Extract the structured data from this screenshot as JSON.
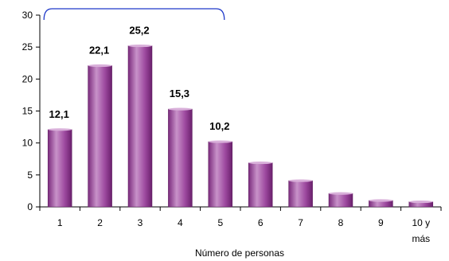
{
  "chart_data": {
    "type": "bar",
    "categories": [
      "1",
      "2",
      "3",
      "4",
      "5",
      "6",
      "7",
      "8",
      "9",
      "10 y más"
    ],
    "values": [
      12.1,
      22.1,
      25.2,
      15.3,
      10.2,
      6.9,
      4.1,
      2.1,
      1.0,
      0.8
    ],
    "data_labels": [
      "12,1",
      "22,1",
      "25,2",
      "15,3",
      "10,2",
      "",
      "",
      "",
      "",
      ""
    ],
    "title": "",
    "xlabel": "Número de personas",
    "ylabel": "",
    "ylim": [
      0,
      30
    ],
    "yticks": [
      0,
      5,
      10,
      15,
      20,
      25,
      30
    ],
    "grid": false,
    "bar_color": "#9e4aa0",
    "bracket_color": "#1f39c9",
    "bracket_span": [
      "1",
      "5"
    ]
  }
}
